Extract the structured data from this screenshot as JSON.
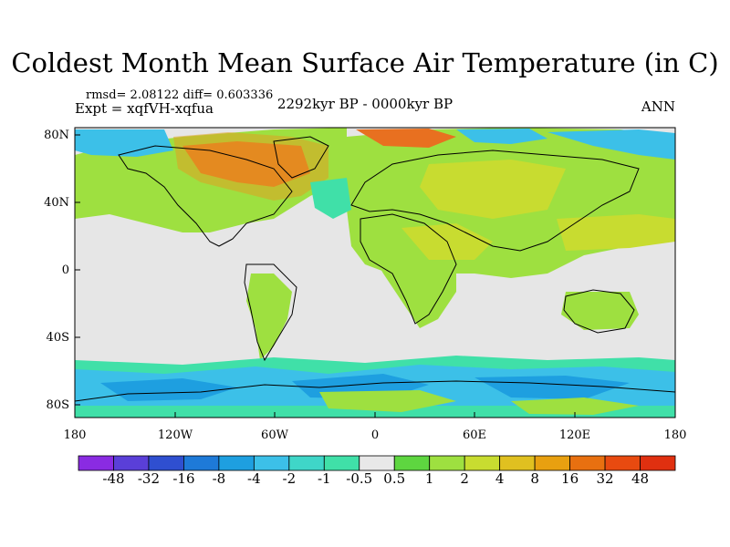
{
  "title": "Coldest Month Mean Surface Air Temperature (in C)",
  "stats": {
    "rmsd_label": "rmsd= 2.08122",
    "diff_label": "diff= 0.603336"
  },
  "expt": "Expt = xqfVH-xqfua",
  "period": "2292kyr BP - 0000kyr BP",
  "season": "ANN",
  "lat_labels": [
    "80N",
    "40N",
    "0",
    "40S",
    "80S"
  ],
  "lon_labels": [
    "180",
    "120W",
    "60W",
    "0",
    "60E",
    "120E",
    "180"
  ],
  "colorbar": {
    "labels": [
      "-48",
      "-32",
      "-16",
      "-8",
      "-4",
      "-2",
      "-1",
      "-0.5",
      "0.5",
      "1",
      "2",
      "4",
      "8",
      "16",
      "32",
      "48"
    ],
    "colors": [
      "#8a2be2",
      "#5a3fd8",
      "#2f4fd0",
      "#1e7ad8",
      "#1e9fe0",
      "#3cc0e8",
      "#3fd6c8",
      "#40e0a8",
      "#e8e8e8",
      "#5ed640",
      "#9ee040",
      "#c8dc30",
      "#e0c020",
      "#e8a010",
      "#e87010",
      "#e84a10",
      "#e03010"
    ]
  },
  "map_colors": {
    "ocean_neutral": "#e6e6e6",
    "warm_light": "#9ee040",
    "warm_mid": "#c8dc30",
    "warm_strong": "#e0a020",
    "warm_hot": "#e87020",
    "cold_light": "#40e0a8",
    "cold_mid": "#3cc0e8",
    "cold_strong": "#1e9fe0",
    "coast": "#000000"
  }
}
